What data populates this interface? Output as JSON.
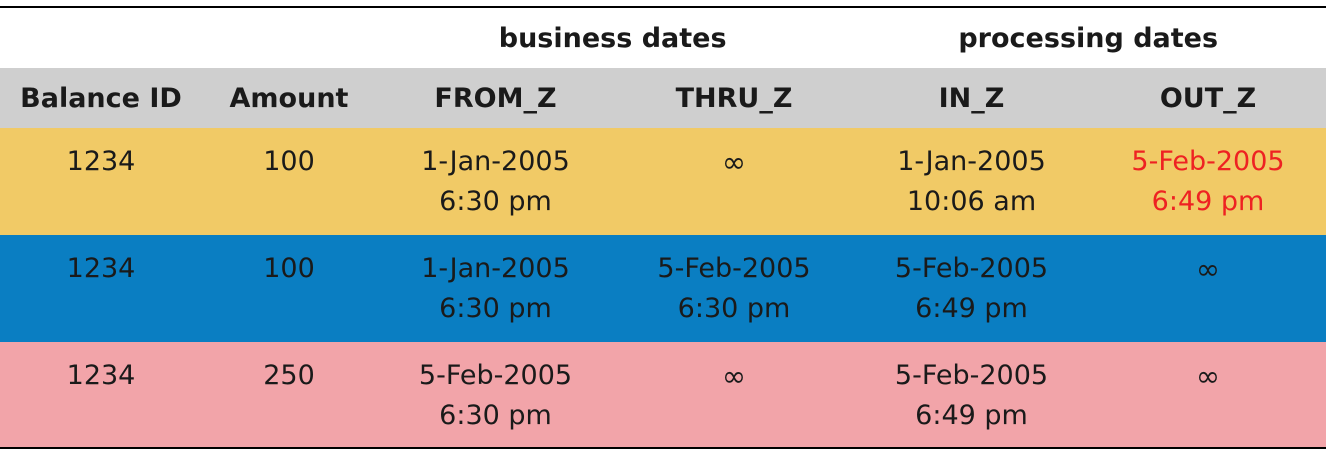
{
  "groups": {
    "business": "business dates",
    "processing": "processing dates"
  },
  "headers": {
    "balance_id": "Balance ID",
    "amount": "Amount",
    "from_z": "FROM_Z",
    "thru_z": "THRU_Z",
    "in_z": "IN_Z",
    "out_z": "OUT_Z"
  },
  "rows": [
    {
      "balance_id": "1234",
      "amount": "100",
      "from_z": {
        "date": "1-Jan-2005",
        "time": "6:30 pm"
      },
      "thru_z": "∞",
      "in_z": {
        "date": "1-Jan-2005",
        "time": "10:06 am"
      },
      "out_z": {
        "date": "5-Feb-2005",
        "time": "6:49 pm"
      },
      "row_color": "#f1ca66",
      "highlight_color": "#ee2222"
    },
    {
      "balance_id": "1234",
      "amount": "100",
      "from_z": {
        "date": "1-Jan-2005",
        "time": "6:30 pm"
      },
      "thru_z": {
        "date": "5-Feb-2005",
        "time": "6:30 pm"
      },
      "in_z": {
        "date": "5-Feb-2005",
        "time": "6:49 pm"
      },
      "out_z": "∞",
      "row_color": "#0a7ec2"
    },
    {
      "balance_id": "1234",
      "amount": "250",
      "from_z": {
        "date": "5-Feb-2005",
        "time": "6:30 pm"
      },
      "thru_z": "∞",
      "in_z": {
        "date": "5-Feb-2005",
        "time": "6:49 pm"
      },
      "out_z": "∞",
      "row_color": "#f2a4a9"
    }
  ],
  "colors": {
    "header_bg": "#cfcfcf",
    "text": "#1a1a1a"
  }
}
